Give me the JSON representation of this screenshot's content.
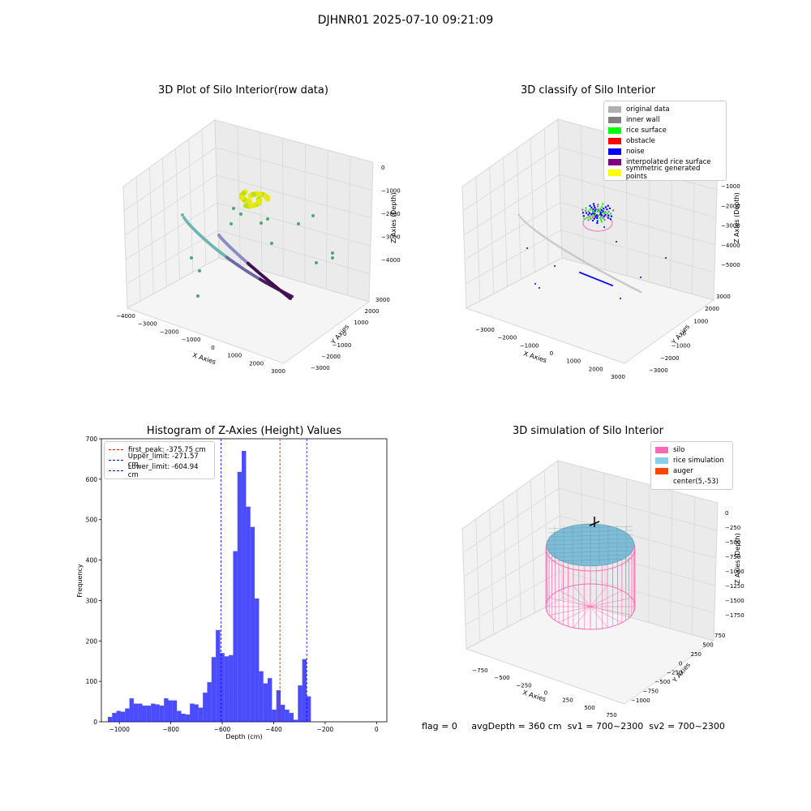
{
  "suptitle": "DJHNR01 2025-07-10 09:21:09",
  "panels": {
    "raw": {
      "title": "3D Plot of Silo Interior(row data)",
      "xlabel": "X Axies",
      "ylabel": "Y Axies",
      "zlabel": "Z Axies (Depth)",
      "xticks": [
        "-4000",
        "-3000",
        "-2000",
        "-1000",
        "0",
        "1000",
        "2000",
        "3000"
      ],
      "yticks": [
        "-3000",
        "-2000",
        "-1000",
        "0",
        "1000",
        "2000",
        "3000"
      ],
      "zticks": [
        "0",
        "-1000",
        "-2000",
        "-3000",
        "-4000"
      ]
    },
    "classify": {
      "title": "3D classify of Silo Interior",
      "xlabel": "X Axies",
      "ylabel": "Y Axies",
      "zlabel": "Z Axies (Depth)",
      "xticks": [
        "-3000",
        "-2000",
        "-1000",
        "0",
        "1000",
        "2000",
        "3000"
      ],
      "yticks": [
        "-3000",
        "-2000",
        "-1000",
        "0",
        "1000",
        "2000",
        "3000"
      ],
      "zticks": [
        "0",
        "-1000",
        "-2000",
        "-3000",
        "-4000",
        "-5000"
      ],
      "legend": [
        {
          "label": "original data",
          "color": "#b0b0b0"
        },
        {
          "label": "inner wall",
          "color": "#808080"
        },
        {
          "label": "rice surface",
          "color": "#00ff00"
        },
        {
          "label": "obstacle",
          "color": "#ff0000"
        },
        {
          "label": "noise",
          "color": "#0000ff"
        },
        {
          "label": "interpolated rice surface",
          "color": "#800080"
        },
        {
          "label": "symmetric generated points",
          "color": "#ffff00"
        }
      ]
    },
    "simulation": {
      "title": "3D simulation of Silo Interior",
      "xlabel": "X Axies",
      "ylabel": "Y Axies",
      "zlabel": "Z Axies (Depth)",
      "xticks": [
        "-750",
        "-500",
        "-250",
        "0",
        "250",
        "500",
        "750"
      ],
      "yticks": [
        "-1000",
        "-750",
        "-500",
        "-250",
        "0",
        "250",
        "500",
        "750"
      ],
      "zticks": [
        "0",
        "-250",
        "-500",
        "-750",
        "-1000",
        "-1250",
        "-1500",
        "-1750"
      ],
      "legend": [
        {
          "label": "silo",
          "color": "#ff69b4"
        },
        {
          "label": "rice simulation",
          "color": "#87ceeb"
        },
        {
          "label": "auger",
          "color": "#ff4500"
        },
        {
          "label": "center(5,-53)",
          "color": "#ffffff"
        }
      ]
    }
  },
  "chart_data": {
    "type": "bar",
    "title": "Histogram of Z-Axies (Height) Values",
    "xlabel": "Depth (cm)",
    "ylabel": "Frequency",
    "bar_color": "#0000ff",
    "xlim": [
      -1070,
      40
    ],
    "ylim": [
      0,
      700
    ],
    "xticks": [
      -1000,
      -800,
      -600,
      -400,
      -200,
      0
    ],
    "yticks": [
      0,
      100,
      200,
      300,
      400,
      500,
      600,
      700
    ],
    "bin_start": -1045,
    "bin_width": 16.8,
    "values": [
      12,
      22,
      27,
      25,
      33,
      58,
      45,
      45,
      40,
      40,
      45,
      43,
      40,
      58,
      53,
      53,
      27,
      20,
      18,
      45,
      43,
      35,
      72,
      98,
      160,
      227,
      170,
      162,
      165,
      422,
      618,
      670,
      532,
      482,
      305,
      125,
      95,
      108,
      30,
      78,
      42,
      30,
      22,
      5,
      90,
      155,
      63
    ],
    "vlines": [
      {
        "label": "first_peak: -375.75 cm",
        "x": -375.75,
        "color": "#ff0000"
      },
      {
        "label": "Upper_limit: -271.57 cm",
        "x": -271.57,
        "color": "#0000ff"
      },
      {
        "label": "Lower_limit: -604.94 cm",
        "x": -604.94,
        "color": "#0000ff"
      }
    ],
    "grid": false,
    "legend_position": "upper-left"
  },
  "footer": {
    "flag": "flag = 0",
    "avg": "avgDepth = 360 cm",
    "sv1": "sv1 = 700~2300",
    "sv2": "sv2 = 700~2300"
  }
}
